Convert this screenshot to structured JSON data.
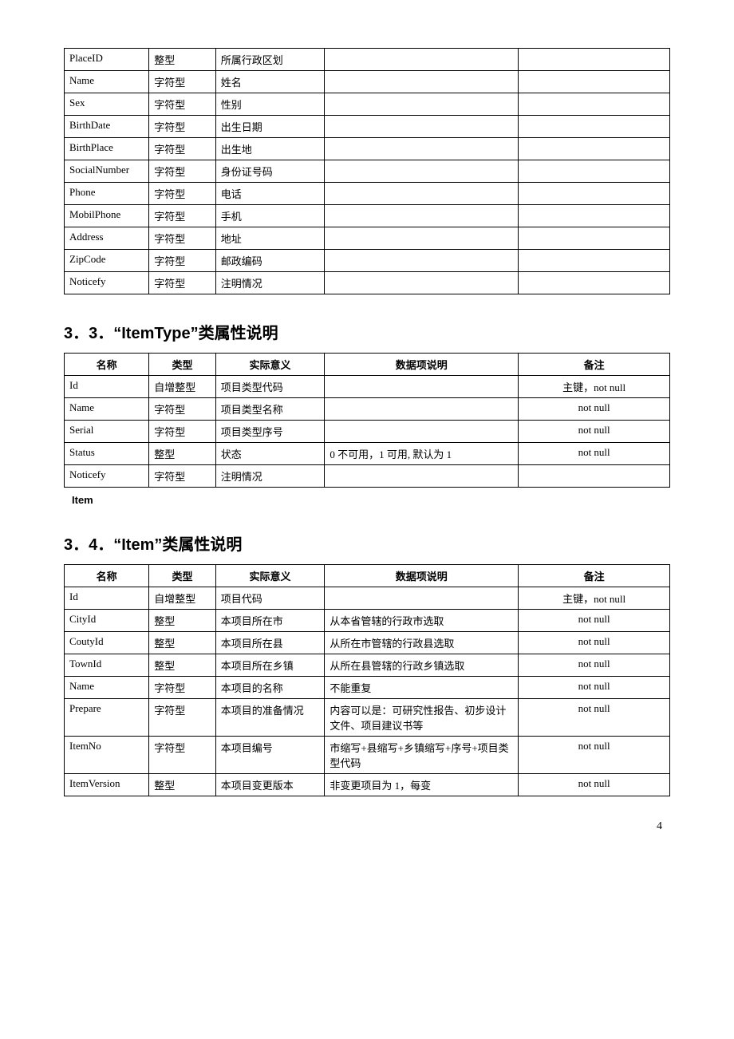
{
  "table1": {
    "rows": [
      [
        "PlaceID",
        "整型",
        "所属行政区划",
        "",
        ""
      ],
      [
        "Name",
        "字符型",
        "姓名",
        "",
        ""
      ],
      [
        "Sex",
        "字符型",
        "性别",
        "",
        ""
      ],
      [
        "BirthDate",
        "字符型",
        "出生日期",
        "",
        ""
      ],
      [
        "BirthPlace",
        "字符型",
        "出生地",
        "",
        ""
      ],
      [
        "SocialNumber",
        "字符型",
        "身份证号码",
        "",
        ""
      ],
      [
        "Phone",
        "字符型",
        "电话",
        "",
        ""
      ],
      [
        "MobilPhone",
        "字符型",
        "手机",
        "",
        ""
      ],
      [
        "Address",
        "字符型",
        "地址",
        "",
        ""
      ],
      [
        "ZipCode",
        "字符型",
        "邮政编码",
        "",
        ""
      ],
      [
        "Noticefy",
        "字符型",
        "注明情况",
        "",
        ""
      ]
    ]
  },
  "section3_3": {
    "title": "3．3．“ItemType”类属性说明",
    "headers": [
      "名称",
      "类型",
      "实际意义",
      "数据项说明",
      "备注"
    ],
    "rows": [
      [
        "Id",
        "自增整型",
        "项目类型代码",
        "",
        "主键，not null"
      ],
      [
        "Name",
        "字符型",
        "项目类型名称",
        "",
        "not null"
      ],
      [
        "Serial",
        "字符型",
        "项目类型序号",
        "",
        "not null"
      ],
      [
        "Status",
        "整型",
        "状态",
        "0 不可用，1 可用, 默认为 1",
        "not null"
      ],
      [
        "Noticefy",
        "字符型",
        "注明情况",
        "",
        ""
      ]
    ],
    "sublabel": "Item"
  },
  "section3_4": {
    "title": "3．4．“Item”类属性说明",
    "headers": [
      "名称",
      "类型",
      "实际意义",
      "数据项说明",
      "备注"
    ],
    "rows": [
      [
        "Id",
        "自增整型",
        "项目代码",
        "",
        "主键，not null"
      ],
      [
        "CityId",
        "整型",
        "本项目所在市",
        "从本省管辖的行政市选取",
        "not null"
      ],
      [
        "CoutyId",
        "整型",
        "本项目所在县",
        "从所在市管辖的行政县选取",
        "not null"
      ],
      [
        "TownId",
        "整型",
        "本项目所在乡镇",
        "从所在县管辖的行政乡镇选取",
        "not null"
      ],
      [
        "Name",
        "字符型",
        "本项目的名称",
        "不能重复",
        "not null"
      ],
      [
        "Prepare",
        "字符型",
        "本项目的准备情况",
        "内容可以是：可研究性报告、初步设计文件、项目建议书等",
        "not null"
      ],
      [
        "ItemNo",
        "字符型",
        "本项目编号",
        "市缩写+县缩写+乡镇缩写+序号+项目类型代码",
        "not null"
      ],
      [
        "ItemVersion",
        "整型",
        "本项目变更版本",
        "非变更项目为 1，每变",
        "not null"
      ]
    ]
  },
  "pageNumber": "4"
}
